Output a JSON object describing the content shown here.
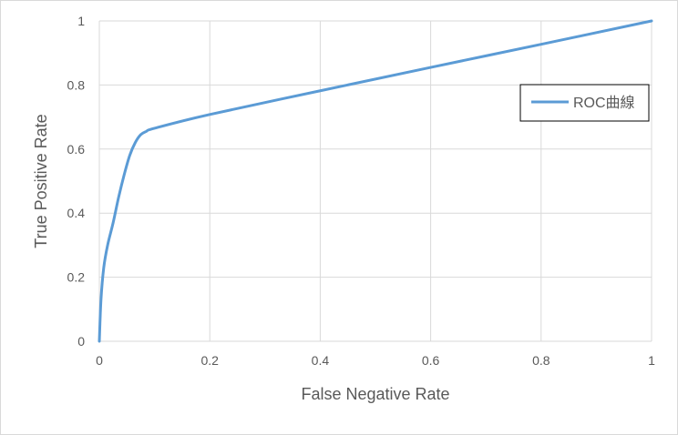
{
  "chart_data": {
    "type": "line",
    "title": "",
    "xlabel": "False Negative Rate",
    "ylabel": "True Positive Rate",
    "xlim": [
      0,
      1
    ],
    "ylim": [
      0,
      1
    ],
    "xticks": [
      "0",
      "0.2",
      "0.4",
      "0.6",
      "0.8",
      "1"
    ],
    "yticks": [
      "0",
      "0.2",
      "0.4",
      "0.6",
      "0.8",
      "1"
    ],
    "grid": true,
    "legend_position": "right",
    "series": [
      {
        "name": "ROC曲線",
        "color": "#5b9bd5",
        "x": [
          0,
          0.003,
          0.008,
          0.015,
          0.025,
          0.035,
          0.045,
          0.055,
          0.065,
          0.075,
          0.085,
          0.1,
          0.2,
          0.4,
          0.6,
          0.8,
          1
        ],
        "y": [
          0,
          0.13,
          0.23,
          0.3,
          0.37,
          0.45,
          0.52,
          0.58,
          0.62,
          0.645,
          0.655,
          0.665,
          0.708,
          0.782,
          0.855,
          0.927,
          1
        ]
      }
    ]
  }
}
